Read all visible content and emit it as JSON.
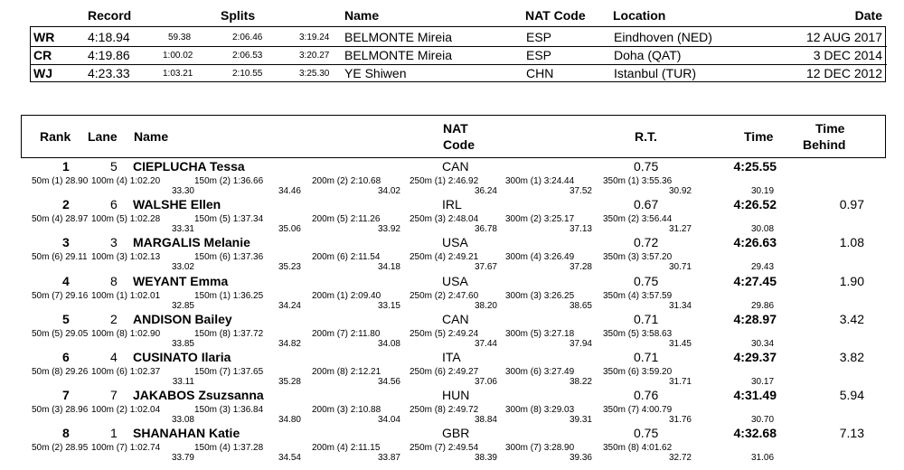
{
  "records": {
    "headers": {
      "record": "Record",
      "splits": "Splits",
      "name": "Name",
      "nat_code": "NAT Code",
      "location": "Location",
      "date": "Date"
    },
    "rows": [
      {
        "type": "WR",
        "time": "4:18.94",
        "s1": "59.38",
        "s2": "2:06.46",
        "s3": "3:19.24",
        "name": "BELMONTE Mireia",
        "nat": "ESP",
        "location": "Eindhoven (NED)",
        "date": "12 AUG 2017"
      },
      {
        "type": "CR",
        "time": "4:19.86",
        "s1": "1:00.02",
        "s2": "2:06.53",
        "s3": "3:20.27",
        "name": "BELMONTE Mireia",
        "nat": "ESP",
        "location": "Doha (QAT)",
        "date": "3 DEC 2014"
      },
      {
        "type": "WJ",
        "time": "4:23.33",
        "s1": "1:03.21",
        "s2": "2:10.55",
        "s3": "3:25.30",
        "name": "YE Shiwen",
        "nat": "CHN",
        "location": "Istanbul (TUR)",
        "date": "12 DEC 2012"
      }
    ]
  },
  "results": {
    "headers": {
      "rank": "Rank",
      "lane": "Lane",
      "name": "Name",
      "nat_1": "NAT",
      "nat_2": "Code",
      "rt": "R.T.",
      "time": "Time",
      "behind_1": "Time",
      "behind_2": "Behind"
    },
    "rows": [
      {
        "rank": "1",
        "lane": "5",
        "name": "CIEPLUCHA Tessa",
        "nat": "CAN",
        "rt": "0.75",
        "time": "4:25.55",
        "behind": "",
        "splits": [
          {
            "label": "50m (1) 28.90",
            "lap": ""
          },
          {
            "label": "100m (4) 1:02.20",
            "lap": "33.30"
          },
          {
            "label": "150m (2) 1:36.66",
            "lap": "34.46"
          },
          {
            "label": "200m (2) 2:10.68",
            "lap": "34.02"
          },
          {
            "label": "250m (1) 2:46.92",
            "lap": "36.24"
          },
          {
            "label": "300m (1) 3:24.44",
            "lap": "37.52"
          },
          {
            "label": "350m (1) 3:55.36",
            "lap": "30.92"
          }
        ],
        "last_lap": "30.19"
      },
      {
        "rank": "2",
        "lane": "6",
        "name": "WALSHE Ellen",
        "nat": "IRL",
        "rt": "0.67",
        "time": "4:26.52",
        "behind": "0.97",
        "splits": [
          {
            "label": "50m (4) 28.97",
            "lap": ""
          },
          {
            "label": "100m (5) 1:02.28",
            "lap": "33.31"
          },
          {
            "label": "150m (5) 1:37.34",
            "lap": "35.06"
          },
          {
            "label": "200m (5) 2:11.26",
            "lap": "33.92"
          },
          {
            "label": "250m (3) 2:48.04",
            "lap": "36.78"
          },
          {
            "label": "300m (2) 3:25.17",
            "lap": "37.13"
          },
          {
            "label": "350m (2) 3:56.44",
            "lap": "31.27"
          }
        ],
        "last_lap": "30.08"
      },
      {
        "rank": "3",
        "lane": "3",
        "name": "MARGALIS Melanie",
        "nat": "USA",
        "rt": "0.72",
        "time": "4:26.63",
        "behind": "1.08",
        "splits": [
          {
            "label": "50m (6) 29.11",
            "lap": ""
          },
          {
            "label": "100m (3) 1:02.13",
            "lap": "33.02"
          },
          {
            "label": "150m (6) 1:37.36",
            "lap": "35.23"
          },
          {
            "label": "200m (6) 2:11.54",
            "lap": "34.18"
          },
          {
            "label": "250m (4) 2:49.21",
            "lap": "37.67"
          },
          {
            "label": "300m (4) 3:26.49",
            "lap": "37.28"
          },
          {
            "label": "350m (3) 3:57.20",
            "lap": "30.71"
          }
        ],
        "last_lap": "29.43"
      },
      {
        "rank": "4",
        "lane": "8",
        "name": "WEYANT Emma",
        "nat": "USA",
        "rt": "0.75",
        "time": "4:27.45",
        "behind": "1.90",
        "splits": [
          {
            "label": "50m (7) 29.16",
            "lap": ""
          },
          {
            "label": "100m (1) 1:02.01",
            "lap": "32.85"
          },
          {
            "label": "150m (1) 1:36.25",
            "lap": "34.24"
          },
          {
            "label": "200m (1) 2:09.40",
            "lap": "33.15"
          },
          {
            "label": "250m (2) 2:47.60",
            "lap": "38.20"
          },
          {
            "label": "300m (3) 3:26.25",
            "lap": "38.65"
          },
          {
            "label": "350m (4) 3:57.59",
            "lap": "31.34"
          }
        ],
        "last_lap": "29.86"
      },
      {
        "rank": "5",
        "lane": "2",
        "name": "ANDISON Bailey",
        "nat": "CAN",
        "rt": "0.71",
        "time": "4:28.97",
        "behind": "3.42",
        "splits": [
          {
            "label": "50m (5) 29.05",
            "lap": ""
          },
          {
            "label": "100m (8) 1:02.90",
            "lap": "33.85"
          },
          {
            "label": "150m (8) 1:37.72",
            "lap": "34.82"
          },
          {
            "label": "200m (7) 2:11.80",
            "lap": "34.08"
          },
          {
            "label": "250m (5) 2:49.24",
            "lap": "37.44"
          },
          {
            "label": "300m (5) 3:27.18",
            "lap": "37.94"
          },
          {
            "label": "350m (5) 3:58.63",
            "lap": "31.45"
          }
        ],
        "last_lap": "30.34"
      },
      {
        "rank": "6",
        "lane": "4",
        "name": "CUSINATO Ilaria",
        "nat": "ITA",
        "rt": "0.71",
        "time": "4:29.37",
        "behind": "3.82",
        "splits": [
          {
            "label": "50m (8) 29.26",
            "lap": ""
          },
          {
            "label": "100m (6) 1:02.37",
            "lap": "33.11"
          },
          {
            "label": "150m (7) 1:37.65",
            "lap": "35.28"
          },
          {
            "label": "200m (8) 2:12.21",
            "lap": "34.56"
          },
          {
            "label": "250m (6) 2:49.27",
            "lap": "37.06"
          },
          {
            "label": "300m (6) 3:27.49",
            "lap": "38.22"
          },
          {
            "label": "350m (6) 3:59.20",
            "lap": "31.71"
          }
        ],
        "last_lap": "30.17"
      },
      {
        "rank": "7",
        "lane": "7",
        "name": "JAKABOS Zsuzsanna",
        "nat": "HUN",
        "rt": "0.76",
        "time": "4:31.49",
        "behind": "5.94",
        "splits": [
          {
            "label": "50m (3) 28.96",
            "lap": ""
          },
          {
            "label": "100m (2) 1:02.04",
            "lap": "33.08"
          },
          {
            "label": "150m (3) 1:36.84",
            "lap": "34.80"
          },
          {
            "label": "200m (3) 2:10.88",
            "lap": "34.04"
          },
          {
            "label": "250m (8) 2:49.72",
            "lap": "38.84"
          },
          {
            "label": "300m (8) 3:29.03",
            "lap": "39.31"
          },
          {
            "label": "350m (7) 4:00.79",
            "lap": "31.76"
          }
        ],
        "last_lap": "30.70"
      },
      {
        "rank": "8",
        "lane": "1",
        "name": "SHANAHAN Katie",
        "nat": "GBR",
        "rt": "0.75",
        "time": "4:32.68",
        "behind": "7.13",
        "splits": [
          {
            "label": "50m (2) 28.95",
            "lap": ""
          },
          {
            "label": "100m (7) 1:02.74",
            "lap": "33.79"
          },
          {
            "label": "150m (4) 1:37.28",
            "lap": "34.54"
          },
          {
            "label": "200m (4) 2:11.15",
            "lap": "33.87"
          },
          {
            "label": "250m (7) 2:49.54",
            "lap": "38.39"
          },
          {
            "label": "300m (7) 3:28.90",
            "lap": "39.36"
          },
          {
            "label": "350m (8) 4:01.62",
            "lap": "32.72"
          }
        ],
        "last_lap": "31.06"
      }
    ]
  }
}
